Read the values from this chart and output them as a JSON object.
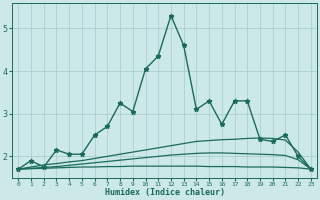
{
  "xlabel": "Humidex (Indice chaleur)",
  "x": [
    0,
    1,
    2,
    3,
    4,
    5,
    6,
    7,
    8,
    9,
    10,
    11,
    12,
    13,
    14,
    15,
    16,
    17,
    18,
    19,
    20,
    21,
    22,
    23
  ],
  "line1": [
    1.7,
    1.9,
    1.75,
    2.15,
    2.05,
    2.05,
    2.5,
    2.7,
    3.25,
    3.05,
    4.05,
    4.35,
    5.3,
    4.6,
    3.1,
    3.3,
    2.75,
    3.3,
    3.3,
    2.4,
    2.35,
    2.5,
    2.0,
    1.7
  ],
  "line2": [
    1.7,
    1.75,
    1.8,
    1.83,
    1.87,
    1.9,
    1.95,
    2.0,
    2.05,
    2.1,
    2.15,
    2.2,
    2.25,
    2.3,
    2.35,
    2.37,
    2.39,
    2.4,
    2.42,
    2.43,
    2.42,
    2.38,
    2.1,
    1.7
  ],
  "line3": [
    1.7,
    1.72,
    1.74,
    1.76,
    1.79,
    1.82,
    1.85,
    1.88,
    1.91,
    1.94,
    1.97,
    2.0,
    2.03,
    2.05,
    2.07,
    2.08,
    2.08,
    2.07,
    2.06,
    2.05,
    2.04,
    2.02,
    1.92,
    1.7
  ],
  "line4": [
    1.7,
    1.71,
    1.72,
    1.73,
    1.74,
    1.75,
    1.75,
    1.76,
    1.76,
    1.77,
    1.77,
    1.77,
    1.77,
    1.77,
    1.77,
    1.76,
    1.76,
    1.76,
    1.75,
    1.75,
    1.75,
    1.74,
    1.73,
    1.7
  ],
  "line_color": "#1a6b5a",
  "bg_color": "#cce8e8",
  "grid_color": "#aacfcf",
  "ylim": [
    1.5,
    5.6
  ],
  "xlim": [
    -0.5,
    23.5
  ],
  "yticks": [
    2,
    3,
    4,
    5
  ],
  "xticks": [
    0,
    1,
    2,
    3,
    4,
    5,
    6,
    7,
    8,
    9,
    10,
    11,
    12,
    13,
    14,
    15,
    16,
    17,
    18,
    19,
    20,
    21,
    22,
    23
  ]
}
